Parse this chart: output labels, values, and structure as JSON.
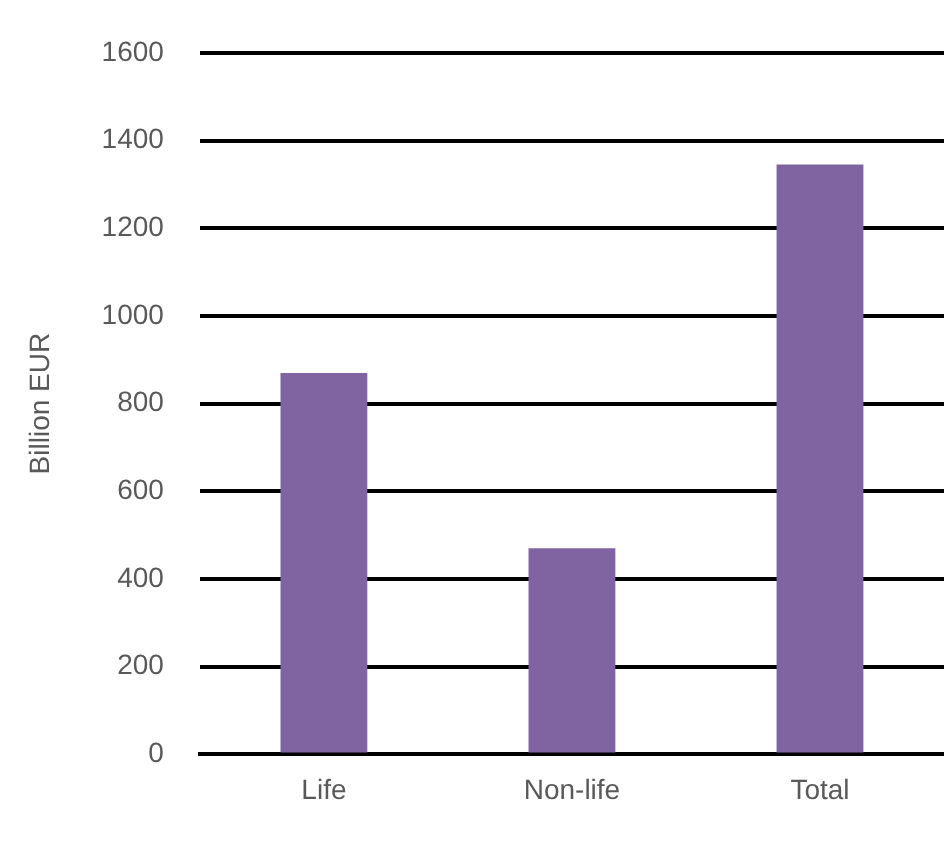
{
  "chart_data": {
    "type": "bar",
    "ylabel": "Billion EUR",
    "categories": [
      "Life",
      "Non-life",
      "Total"
    ],
    "values": [
      870,
      470,
      1345
    ],
    "color": "#8064a2",
    "ylim": [
      0,
      1600
    ],
    "yticks": [
      0,
      200,
      400,
      600,
      800,
      1000,
      1200,
      1400,
      1600
    ],
    "grid": "y"
  }
}
